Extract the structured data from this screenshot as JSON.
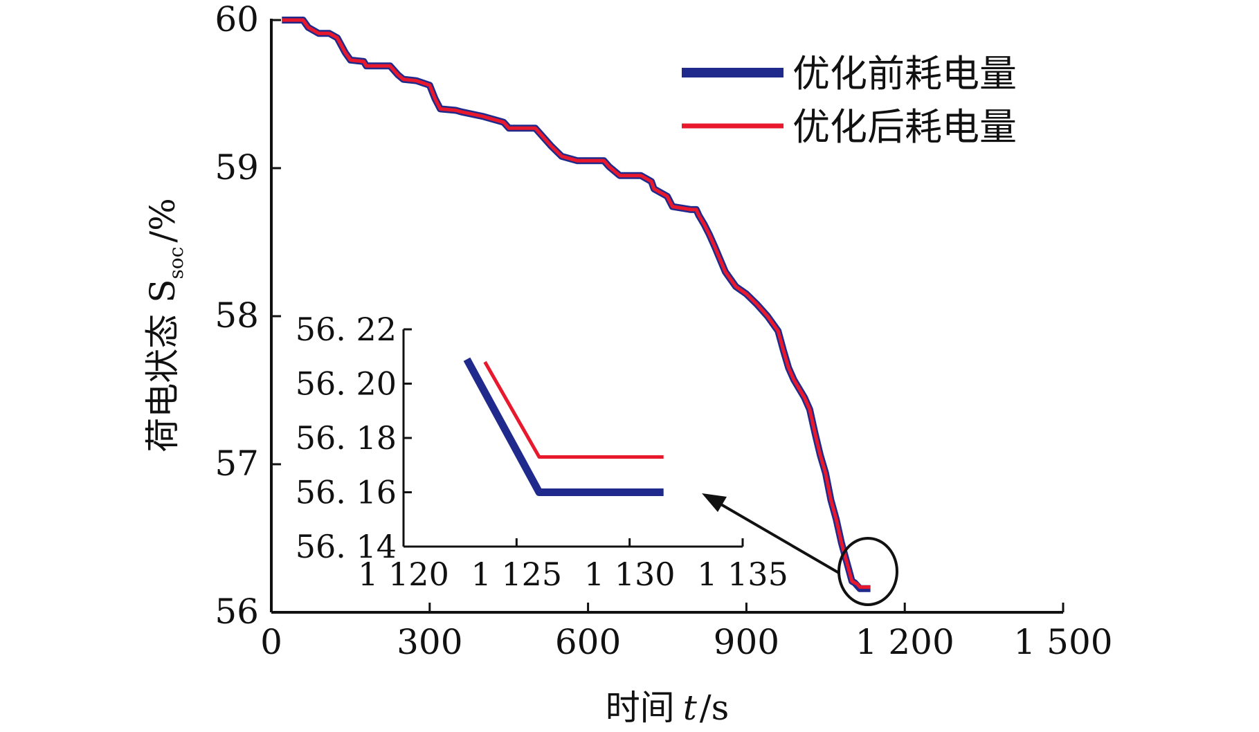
{
  "chart_data": [
    {
      "type": "line",
      "title": "",
      "xlabel": "时间 t/s",
      "xlabel_parts": {
        "text": "时间",
        "var": "t",
        "unit": "/s"
      },
      "ylabel": "荷电状态 Ssoc/%",
      "ylabel_parts": {
        "text": "荷电状态",
        "var": "S",
        "sub": "soc",
        "unit": "/%"
      },
      "xlim": [
        0,
        1500
      ],
      "ylim": [
        56,
        60
      ],
      "xticks": [
        0,
        300,
        600,
        900,
        1200,
        1500
      ],
      "xtick_labels": [
        "0",
        "300",
        "600",
        "900",
        "1 200",
        "1 500"
      ],
      "yticks": [
        56,
        57,
        58,
        59,
        60
      ],
      "ytick_labels": [
        "56",
        "57",
        "58",
        "59",
        "60"
      ],
      "grid": false,
      "legend": "top-right",
      "series": [
        {
          "name": "优化前耗电量",
          "color": "#1f2a8c",
          "x": [
            20,
            60,
            70,
            90,
            110,
            125,
            140,
            150,
            175,
            180,
            225,
            240,
            250,
            275,
            300,
            310,
            320,
            350,
            360,
            400,
            440,
            450,
            500,
            510,
            530,
            550,
            570,
            580,
            590,
            630,
            640,
            660,
            700,
            720,
            725,
            750,
            760,
            795,
            805,
            810,
            820,
            830,
            840,
            860,
            880,
            900,
            920,
            940,
            960,
            970,
            980,
            990,
            1010,
            1020,
            1030,
            1040,
            1050,
            1060,
            1070,
            1080,
            1090,
            1100,
            1105,
            1110,
            1115,
            1120,
            1125,
            1135
          ],
          "y": [
            60,
            60,
            59.95,
            59.91,
            59.91,
            59.88,
            59.78,
            59.73,
            59.72,
            59.69,
            59.69,
            59.63,
            59.6,
            59.59,
            59.56,
            59.47,
            59.4,
            59.39,
            59.38,
            59.35,
            59.31,
            59.27,
            59.27,
            59.23,
            59.15,
            59.08,
            59.06,
            59.05,
            59.05,
            59.05,
            59.01,
            58.95,
            58.95,
            58.91,
            58.86,
            58.81,
            58.74,
            58.72,
            58.72,
            58.68,
            58.62,
            58.55,
            58.47,
            58.3,
            58.2,
            58.15,
            58.08,
            58.0,
            57.9,
            57.77,
            57.65,
            57.57,
            57.45,
            57.37,
            57.21,
            57.06,
            56.94,
            56.76,
            56.63,
            56.47,
            56.34,
            56.21,
            56.2,
            56.18,
            56.16,
            56.16,
            56.16,
            56.16
          ]
        },
        {
          "name": "优化后耗电量",
          "color": "#e8192c",
          "x": [
            20,
            60,
            70,
            90,
            110,
            125,
            140,
            150,
            175,
            180,
            225,
            240,
            250,
            275,
            300,
            310,
            320,
            350,
            360,
            400,
            440,
            450,
            500,
            510,
            530,
            550,
            570,
            580,
            590,
            630,
            640,
            660,
            700,
            720,
            725,
            750,
            760,
            795,
            805,
            810,
            820,
            830,
            840,
            860,
            880,
            900,
            920,
            940,
            960,
            970,
            980,
            990,
            1010,
            1020,
            1030,
            1040,
            1050,
            1060,
            1070,
            1080,
            1090,
            1100,
            1105,
            1110,
            1115,
            1120,
            1125,
            1135
          ],
          "y": [
            60,
            60,
            59.95,
            59.91,
            59.91,
            59.88,
            59.78,
            59.73,
            59.72,
            59.69,
            59.69,
            59.63,
            59.6,
            59.59,
            59.56,
            59.47,
            59.4,
            59.39,
            59.38,
            59.35,
            59.31,
            59.27,
            59.27,
            59.23,
            59.15,
            59.08,
            59.06,
            59.05,
            59.05,
            59.05,
            59.01,
            58.95,
            58.95,
            58.91,
            58.86,
            58.81,
            58.74,
            58.72,
            58.72,
            58.68,
            58.62,
            58.55,
            58.47,
            58.3,
            58.2,
            58.15,
            58.08,
            58.0,
            57.9,
            57.77,
            57.65,
            57.57,
            57.45,
            57.37,
            57.21,
            57.06,
            56.94,
            56.76,
            56.63,
            56.47,
            56.34,
            56.21,
            56.2,
            56.19,
            56.17,
            56.17,
            56.17,
            56.17
          ]
        }
      ],
      "annotations": [
        "circle-near-1120-56.16",
        "arrow-to-inset"
      ]
    },
    {
      "type": "line",
      "title": "",
      "inset": true,
      "xlim": [
        1120,
        1135
      ],
      "ylim": [
        56.14,
        56.22
      ],
      "xticks": [
        1120,
        1125,
        1130,
        1135
      ],
      "xtick_labels": [
        "1 120",
        "1 125",
        "1 130",
        "1 135"
      ],
      "yticks": [
        56.14,
        56.16,
        56.18,
        56.2,
        56.22
      ],
      "ytick_labels": [
        "56. 14",
        "56. 16",
        "56. 18",
        "56. 20",
        "56. 22"
      ],
      "series": [
        {
          "name": "优化前耗电量",
          "color": "#1f2a8c",
          "x": [
            1122.8,
            1126,
            1131.5
          ],
          "y": [
            56.209,
            56.16,
            56.16
          ]
        },
        {
          "name": "优化后耗电量",
          "color": "#e8192c",
          "x": [
            1123.6,
            1126,
            1131.5
          ],
          "y": [
            56.208,
            56.173,
            56.173
          ]
        }
      ]
    }
  ]
}
